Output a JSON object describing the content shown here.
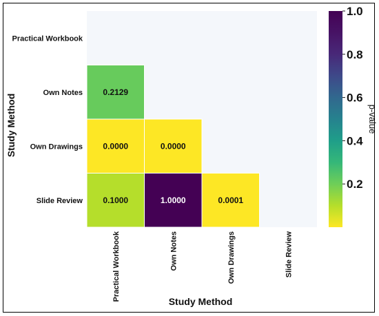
{
  "chart_data": {
    "type": "heatmap",
    "xlabel": "Study Method",
    "ylabel": "Study Method",
    "categories": [
      "Practical Workbook",
      "Own Notes",
      "Own Drawings",
      "Slide Review"
    ],
    "values": [
      [
        null,
        null,
        null,
        null
      ],
      [
        0.2129,
        null,
        null,
        null
      ],
      [
        0.0,
        0.0,
        null,
        null
      ],
      [
        0.1,
        1.0,
        0.0001,
        null
      ]
    ],
    "cell_labels": [
      [
        "",
        "",
        "",
        ""
      ],
      [
        "0.2129",
        "",
        "",
        ""
      ],
      [
        "0.0000",
        "0.0000",
        "",
        ""
      ],
      [
        "0.1000",
        "1.0000",
        "0.0001",
        ""
      ]
    ],
    "colorbar": {
      "label": "p-value",
      "colormap": "viridis_r",
      "range": [
        0.0,
        1.0
      ],
      "ticks": [
        {
          "value": 0.2,
          "label": "0.2"
        },
        {
          "value": 0.4,
          "label": "0.4"
        },
        {
          "value": 0.6,
          "label": "0.6"
        },
        {
          "value": 0.8,
          "label": "0.8"
        },
        {
          "value": 1.0,
          "label": "1.0"
        }
      ]
    },
    "masked_color": "#f4f7fb",
    "grid": false
  }
}
